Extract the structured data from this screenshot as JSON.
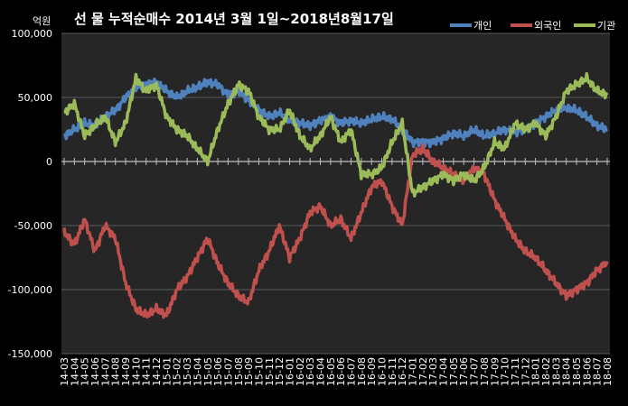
{
  "chart_data": {
    "type": "line",
    "title": "선 물 누적순매수 2014년 3월 1일~2018년8월17일",
    "unit_label": "억원",
    "ylim": [
      -150000,
      100000
    ],
    "y_ticks": [
      100000,
      50000,
      0,
      -50000,
      -100000,
      -150000
    ],
    "y_tick_labels": [
      "100,000",
      "50,000",
      "0",
      "-50,000",
      "-100,000",
      "-150,000"
    ],
    "categories": [
      "14-03",
      "14-04",
      "14-05",
      "14-06",
      "14-07",
      "14-08",
      "14-09",
      "14-10",
      "14-11",
      "14-12",
      "15-01",
      "15-02",
      "15-03",
      "15-04",
      "15-05",
      "15-06",
      "15-07",
      "15-08",
      "15-09",
      "15-10",
      "15-11",
      "15-12",
      "16-01",
      "16-02",
      "16-03",
      "16-04",
      "16-05",
      "16-06",
      "16-07",
      "16-08",
      "16-09",
      "16-10",
      "16-11",
      "16-12",
      "17-01",
      "17-02",
      "17-03",
      "17-04",
      "17-05",
      "17-06",
      "17-07",
      "17-08",
      "17-09",
      "17-10",
      "17-11",
      "17-12",
      "18-01",
      "18-02",
      "18-03",
      "18-04",
      "18-05",
      "18-06",
      "18-07",
      "18-08"
    ],
    "legend_position": "top-right",
    "grid": true,
    "series": [
      {
        "name": "개인",
        "color": "#4f81bd",
        "values": [
          20000,
          25000,
          30000,
          28000,
          35000,
          40000,
          50000,
          58000,
          60000,
          62000,
          55000,
          50000,
          55000,
          58000,
          62000,
          60000,
          52000,
          55000,
          48000,
          40000,
          35000,
          38000,
          32000,
          30000,
          28000,
          32000,
          35000,
          30000,
          32000,
          30000,
          33000,
          35000,
          33000,
          25000,
          15000,
          15000,
          15000,
          18000,
          22000,
          20000,
          25000,
          20000,
          22000,
          25000,
          23000,
          25000,
          30000,
          35000,
          40000,
          42000,
          40000,
          35000,
          28000,
          25000
        ]
      },
      {
        "name": "외국인",
        "color": "#c0504d",
        "values": [
          -55000,
          -65000,
          -45000,
          -70000,
          -50000,
          -60000,
          -95000,
          -115000,
          -120000,
          -115000,
          -120000,
          -100000,
          -90000,
          -75000,
          -60000,
          -80000,
          -95000,
          -105000,
          -110000,
          -85000,
          -70000,
          -50000,
          -75000,
          -60000,
          -40000,
          -35000,
          -50000,
          -45000,
          -60000,
          -40000,
          -20000,
          -15000,
          -35000,
          -50000,
          5000,
          10000,
          0,
          -5000,
          -10000,
          -15000,
          -5000,
          -10000,
          -30000,
          -45000,
          -60000,
          -70000,
          -75000,
          -85000,
          -95000,
          -105000,
          -100000,
          -95000,
          -85000,
          -78000
        ]
      },
      {
        "name": "기관",
        "color": "#9bbb59",
        "values": [
          38000,
          45000,
          20000,
          28000,
          35000,
          15000,
          30000,
          65000,
          55000,
          60000,
          35000,
          25000,
          20000,
          10000,
          0,
          25000,
          45000,
          60000,
          55000,
          35000,
          25000,
          25000,
          40000,
          20000,
          10000,
          20000,
          35000,
          15000,
          25000,
          -10000,
          -10000,
          -5000,
          15000,
          30000,
          -25000,
          -20000,
          -15000,
          -10000,
          -15000,
          -10000,
          -15000,
          -5000,
          15000,
          10000,
          30000,
          25000,
          30000,
          20000,
          35000,
          55000,
          60000,
          65000,
          55000,
          52000
        ]
      }
    ]
  }
}
